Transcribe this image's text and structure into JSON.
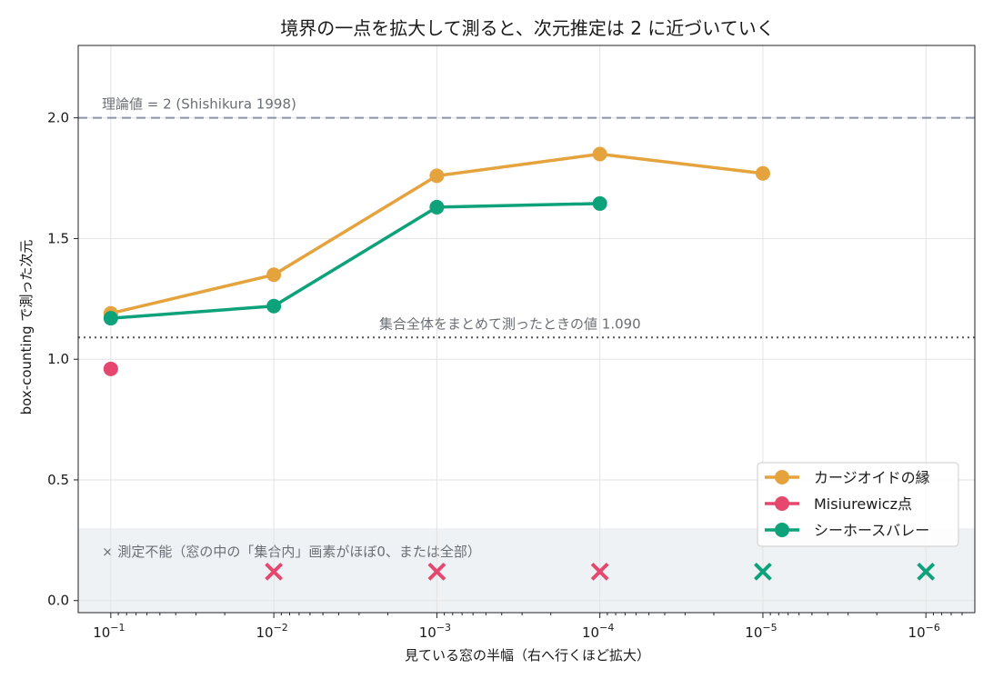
{
  "chart_data": {
    "type": "line",
    "title": "境界の一点を拡大して測ると、次元推定は 2 に近づいていく",
    "xlabel": "見ている窓の半幅（右へ行くほど拡大）",
    "ylabel": "box-counting で測った次元",
    "x_scale": "log",
    "x_reversed": true,
    "xlim": [
      0.1,
      1e-06
    ],
    "ylim": [
      0.0,
      2.0
    ],
    "x_ticks": [
      {
        "value": 0.1,
        "base": "10",
        "exp": "−1"
      },
      {
        "value": 0.01,
        "base": "10",
        "exp": "−2"
      },
      {
        "value": 0.001,
        "base": "10",
        "exp": "−3"
      },
      {
        "value": 0.0001,
        "base": "10",
        "exp": "−4"
      },
      {
        "value": 1e-05,
        "base": "10",
        "exp": "−5"
      },
      {
        "value": 1e-06,
        "base": "10",
        "exp": "−6"
      }
    ],
    "y_ticks": [
      {
        "value": 0.0,
        "label": "0.0"
      },
      {
        "value": 0.5,
        "label": "0.5"
      },
      {
        "value": 1.0,
        "label": "1.0"
      },
      {
        "value": 1.5,
        "label": "1.5"
      },
      {
        "value": 2.0,
        "label": "2.0"
      }
    ],
    "grid": true,
    "series": [
      {
        "name": "カージオイドの縁",
        "color": "#e5a33e",
        "points": [
          {
            "x": 0.1,
            "y": 1.19
          },
          {
            "x": 0.01,
            "y": 1.35
          },
          {
            "x": 0.001,
            "y": 1.76
          },
          {
            "x": 0.0001,
            "y": 1.85
          },
          {
            "x": 1e-05,
            "y": 1.77
          }
        ],
        "unmeasurable_x": []
      },
      {
        "name": "Misiurewicz点",
        "color": "#e5476f",
        "points": [
          {
            "x": 0.1,
            "y": 0.96
          }
        ],
        "unmeasurable_x": [
          0.01,
          0.001,
          0.0001
        ]
      },
      {
        "name": "シーホースバレー",
        "color": "#0ea27a",
        "points": [
          {
            "x": 0.1,
            "y": 1.17
          },
          {
            "x": 0.01,
            "y": 1.22
          },
          {
            "x": 0.001,
            "y": 1.63
          },
          {
            "x": 0.0001,
            "y": 1.645
          }
        ],
        "unmeasurable_x": [
          1e-05,
          1e-06
        ]
      }
    ],
    "reference_lines": [
      {
        "y": 2.0,
        "label": "理論値 = 2 (Shishikura 1998)",
        "style": "dashed",
        "color": "#8a94a6"
      },
      {
        "y": 1.09,
        "label": "集合全体をまとめて測ったときの値 1.090",
        "style": "dotted",
        "color": "#555555"
      }
    ],
    "unmeasurable_band": {
      "y_range": [
        0.0,
        0.3
      ],
      "color": "#eff2f4",
      "label": "× 測定不能（窓の中の「集合内」画素がほぼ0、または全部）",
      "marker_y": 0.12
    },
    "legend_position": "lower-right"
  }
}
